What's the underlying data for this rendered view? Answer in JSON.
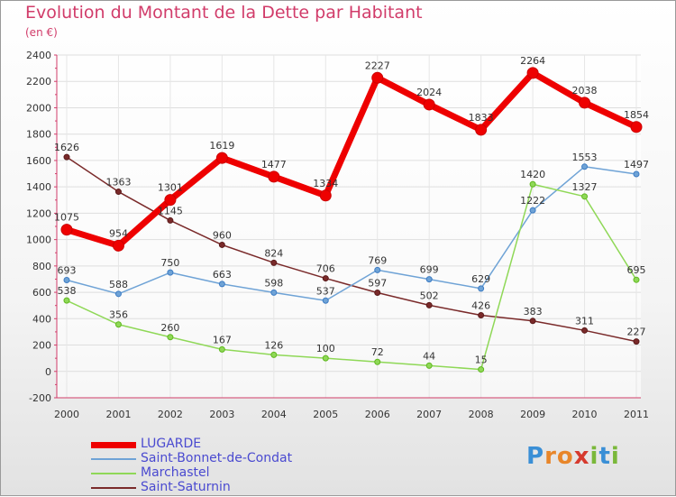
{
  "title": "Evolution du Montant de la Dette par Habitant",
  "subtitle": "(en €)",
  "logo": {
    "text": "Proxiti",
    "letters": [
      "P",
      "r",
      "o",
      "x",
      "i",
      "t",
      "i"
    ],
    "colors": [
      "#3a8fd6",
      "#e8862a",
      "#e8862a",
      "#d63a2e",
      "#7ab83a",
      "#3a8fd6",
      "#7ab83a"
    ]
  },
  "chart_data": {
    "type": "line",
    "title": "Evolution du Montant de la Dette par Habitant",
    "ylabel": "(en €)",
    "xlabel": "",
    "x": [
      "2000",
      "2001",
      "2002",
      "2003",
      "2004",
      "2005",
      "2006",
      "2007",
      "2008",
      "2009",
      "2010",
      "2011"
    ],
    "ylim": [
      -200,
      2400
    ],
    "yticks": [
      -200,
      0,
      200,
      400,
      600,
      800,
      1000,
      1200,
      1400,
      1600,
      1800,
      2000,
      2200,
      2400
    ],
    "grid": true,
    "legend_position": "bottom-left",
    "series": [
      {
        "name": "LUGARDE",
        "color": "#ee0000",
        "values": [
          1075,
          954,
          1301,
          1619,
          1477,
          1334,
          2227,
          2024,
          1833,
          2264,
          2038,
          1854
        ]
      },
      {
        "name": "Saint-Bonnet-de-Condat",
        "color": "#6fa3d6",
        "values": [
          693,
          588,
          750,
          663,
          598,
          537,
          769,
          699,
          629,
          1222,
          1553,
          1497
        ]
      },
      {
        "name": "Marchastel",
        "color": "#8fd857",
        "values": [
          538,
          356,
          260,
          167,
          126,
          100,
          72,
          44,
          15,
          1420,
          1327,
          695
        ]
      },
      {
        "name": "Saint-Saturnin",
        "color": "#7a2a2a",
        "values": [
          1626,
          1363,
          1145,
          960,
          824,
          706,
          597,
          502,
          426,
          383,
          311,
          227
        ]
      }
    ]
  }
}
